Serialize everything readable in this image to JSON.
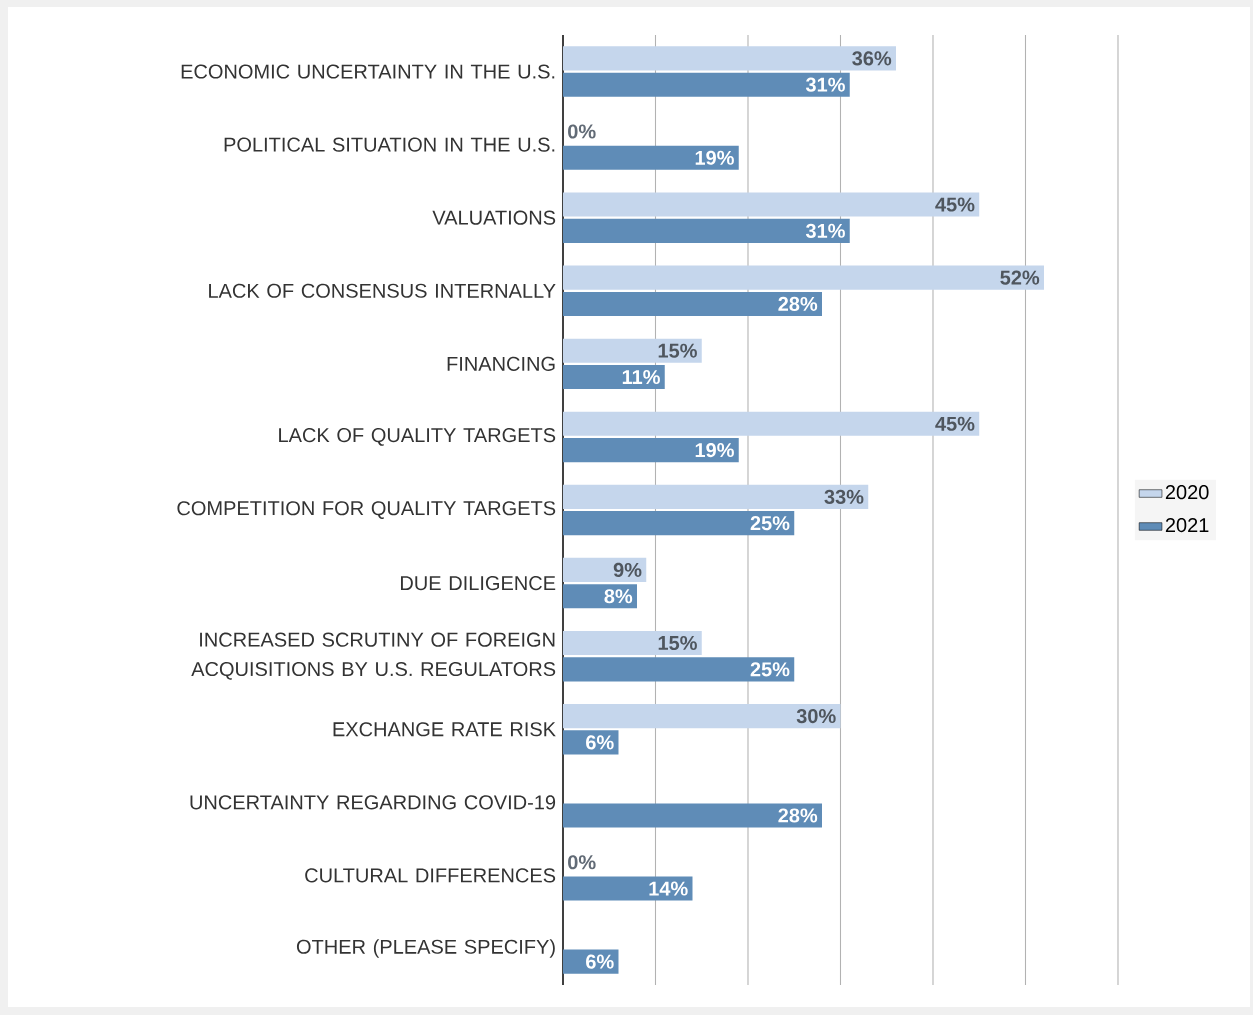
{
  "chart_data": {
    "type": "bar",
    "orientation": "horizontal",
    "categories": [
      "ECONOMIC UNCERTAINTY IN THE U.S.",
      "POLITICAL SITUATION IN THE U.S.",
      "VALUATIONS",
      "LACK OF CONSENSUS INTERNALLY",
      "FINANCING",
      "LACK OF QUALITY TARGETS",
      "COMPETITION FOR QUALITY TARGETS",
      "DUE DILIGENCE",
      "INCREASED SCRUTINY OF FOREIGN ACQUISITIONS BY U.S. REGULATORS",
      "EXCHANGE RATE RISK",
      "UNCERTAINTY REGARDING COVID-19",
      "CULTURAL DIFFERENCES",
      "OTHER (PLEASE SPECIFY)"
    ],
    "series": [
      {
        "name": "2020",
        "color": "#c5d6ec",
        "values": [
          36,
          0,
          45,
          52,
          15,
          45,
          33,
          9,
          15,
          30,
          null,
          0,
          null
        ],
        "value_labels": [
          "36%",
          "0%",
          "45%",
          "52%",
          "15%",
          "45%",
          "33%",
          "9%",
          "15%",
          "30%",
          null,
          "0%",
          null
        ]
      },
      {
        "name": "2021",
        "color": "#5f8cb7",
        "values": [
          31,
          19,
          31,
          28,
          11,
          19,
          25,
          8,
          25,
          6,
          28,
          14,
          6
        ],
        "value_labels": [
          "31%",
          "19%",
          "31%",
          "28%",
          "11%",
          "19%",
          "25%",
          "8%",
          "25%",
          "6%",
          "28%",
          "14%",
          "6%"
        ]
      }
    ],
    "xlim": [
      0,
      60
    ],
    "xticks": [
      {
        "value": 0,
        "label": null
      },
      {
        "value": 10,
        "label": null
      },
      {
        "value": 20,
        "label": null
      },
      {
        "value": 30,
        "label": null
      },
      {
        "value": 40,
        "label": null
      },
      {
        "value": 50,
        "label": null
      },
      {
        "value": 60,
        "label": null
      }
    ],
    "tick_labels": "y",
    "grid": "x",
    "legend": "right"
  }
}
